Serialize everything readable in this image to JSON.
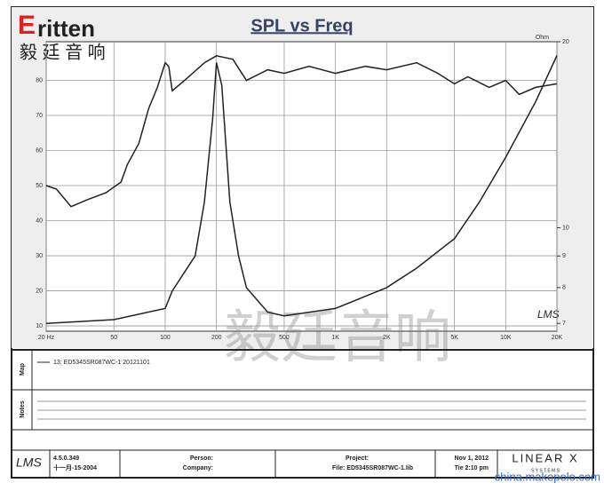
{
  "page": {
    "logo": "ritten",
    "logo_initial": "E",
    "logo_cn": "毅 廷 音 响",
    "watermark": "毅廷音响",
    "site": "china.makepolo.com",
    "lms": "LMS",
    "map_label": "Map",
    "notes_label": "Notes",
    "version": "4.5.0.349",
    "version_date": "十一月-15-2004",
    "person": "Person:",
    "company": "Company:",
    "project": "Project:",
    "file": "File: ED5345SR087WC-1.lib",
    "date": "Nov 1, 2012",
    "time": "Tie 2:10 pm",
    "brand": "LINEAR X",
    "brand_sub": "S Y S T E M S"
  },
  "chart_data": {
    "type": "line",
    "title": "SPL vs Freq",
    "xscale": "log",
    "xlim": [
      20,
      20000
    ],
    "xticks": [
      {
        "value": 20,
        "label": "20 Hz"
      },
      50,
      100,
      200,
      500,
      {
        "value": 1000,
        "label": "1K"
      },
      {
        "value": 2000,
        "label": "2K"
      },
      {
        "value": 5000,
        "label": "5K"
      },
      {
        "value": 10000,
        "label": "10K"
      },
      {
        "value": 20000,
        "label": "20K"
      }
    ],
    "ylim": [
      8.5,
      91
    ],
    "yticks": [
      10,
      20,
      30,
      40,
      50,
      60,
      70,
      80
    ],
    "y2label": "Ohm",
    "y2scale": "log",
    "y2lim": [
      6.8,
      20
    ],
    "y2ticks": [
      7,
      8,
      9,
      10,
      20
    ],
    "grid": true,
    "series": [
      {
        "name": "13: ED5345SR087WC-1 20121101",
        "color": "#222222",
        "x": [
          20,
          23,
          28,
          35,
          45,
          55,
          60,
          70,
          80,
          90,
          100,
          105,
          110,
          130,
          170,
          200,
          250,
          300,
          400,
          500,
          700,
          1000,
          1500,
          2000,
          3000,
          4000,
          5000,
          6000,
          8000,
          10000,
          12000,
          15000,
          20000
        ],
        "values": [
          50,
          49,
          44,
          46,
          48,
          51,
          56,
          62,
          72,
          78,
          85,
          84,
          77,
          80,
          85,
          87,
          86,
          80,
          83,
          82,
          84,
          82,
          84,
          83,
          85,
          82,
          79,
          81,
          78,
          80,
          76,
          78,
          79
        ]
      },
      {
        "color": "#222222",
        "axis": "y2",
        "x": [
          20,
          50,
          100,
          110,
          150,
          170,
          190,
          200,
          215,
          240,
          270,
          300,
          400,
          500,
          1000,
          2000,
          3000,
          5000,
          7000,
          10000,
          15000,
          20000
        ],
        "values": [
          7.0,
          7.1,
          7.4,
          7.9,
          9,
          11,
          15,
          18.5,
          17,
          11,
          9,
          8,
          7.3,
          7.2,
          7.4,
          8,
          8.6,
          9.6,
          11,
          13,
          16,
          19
        ]
      }
    ]
  }
}
